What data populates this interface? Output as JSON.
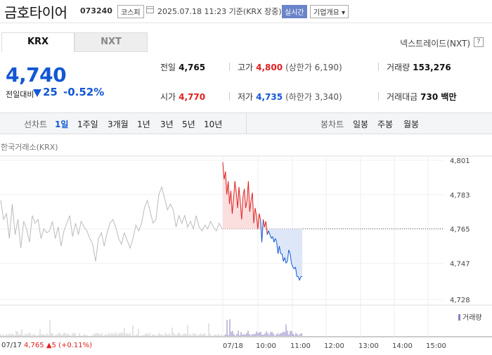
{
  "header": {
    "stock_name": "금호타이어",
    "stock_code": "073240",
    "market_badge": "코스피",
    "timestamp": "2025.07.18 11:23 기준(KRX 장중)",
    "realtime_badge": "실시간",
    "company_info_button": "기업개요 ▾"
  },
  "exchange_tabs": [
    "KRX",
    "NXT"
  ],
  "nextrade_link": "넥스트레이드(NXT)",
  "help_icon_label": "?",
  "price": {
    "current": "4,740",
    "change_label": "전일대비",
    "change_value": "25",
    "change_pct": "-0.52%",
    "direction": "down"
  },
  "stats": {
    "prev_close": {
      "label": "전일",
      "value": "4,765"
    },
    "high": {
      "label": "고가",
      "value": "4,800",
      "sub": "(상한가 6,190)"
    },
    "volume": {
      "label": "거래량",
      "value": "153,276"
    },
    "open": {
      "label": "시가",
      "value": "4,770"
    },
    "low": {
      "label": "저가",
      "value": "4,735",
      "sub": "(하한가 3,340)"
    },
    "trade_value": {
      "label": "거래대금",
      "value": "730 백만"
    }
  },
  "period_bar": {
    "line_label": "선차트",
    "line_periods": [
      "1일",
      "1주일",
      "3개월",
      "1년",
      "3년",
      "5년",
      "10년"
    ],
    "selected": "1일",
    "candle_label": "봉차트",
    "candle_periods": [
      "일봉",
      "주봉",
      "월봉"
    ]
  },
  "chart_source": "한국거래소(KRX)",
  "volume_legend": "거래량",
  "prev_day": {
    "date": "07/17",
    "close": "4,765",
    "change": "▲5 (+0.11%)"
  },
  "colors": {
    "up": "#e02020",
    "down": "#1257d4",
    "prev_line": "#bbbbbb",
    "volume": "#8a7fc0"
  },
  "chart_data": {
    "type": "line",
    "y_ticks": [
      "4,801",
      "4,783",
      "4,765",
      "4,747",
      "4,728"
    ],
    "ylim": [
      4728,
      4801
    ],
    "baseline": 4765,
    "x_ticks": [
      "07/17",
      "07/18",
      "10:00",
      "11:00",
      "12:00",
      "13:00",
      "14:00",
      "15:00"
    ],
    "prev_day_series": [
      4780,
      4770,
      4773,
      4760,
      4778,
      4762,
      4770,
      4755,
      4769,
      4765,
      4758,
      4772,
      4768,
      4770,
      4760,
      4765,
      4763,
      4764,
      4769,
      4760,
      4766,
      4756,
      4764,
      4768,
      4772,
      4761,
      4768,
      4762,
      4769,
      4766,
      4764,
      4760,
      4757,
      4748,
      4760,
      4763,
      4756,
      4763,
      4768,
      4770,
      4766,
      4760,
      4757,
      4763,
      4759,
      4755,
      4760,
      4767,
      4764,
      4768,
      4776,
      4780,
      4774,
      4768,
      4770,
      4783,
      4787,
      4781,
      4775,
      4778,
      4775,
      4766,
      4772,
      4768,
      4772,
      4766,
      4769,
      4765,
      4772,
      4766,
      4764,
      4767,
      4765,
      4769,
      4766,
      4764,
      4768,
      4765
    ],
    "today_series": [
      4800,
      4791,
      4795,
      4783,
      4790,
      4778,
      4785,
      4773,
      4781,
      4790,
      4784,
      4776,
      4787,
      4779,
      4770,
      4782,
      4786,
      4776,
      4780,
      4790,
      4774,
      4780,
      4784,
      4768,
      4776,
      4772,
      4765,
      4773,
      4770,
      4758,
      4770,
      4766,
      4769,
      4762,
      4764,
      4762,
      4760,
      4761,
      4758,
      4760,
      4758,
      4752,
      4756,
      4752,
      4752,
      4748,
      4750,
      4747,
      4748,
      4754,
      4752,
      4747,
      4745,
      4744,
      4745,
      4740,
      4740,
      4738,
      4740,
      4740
    ]
  }
}
